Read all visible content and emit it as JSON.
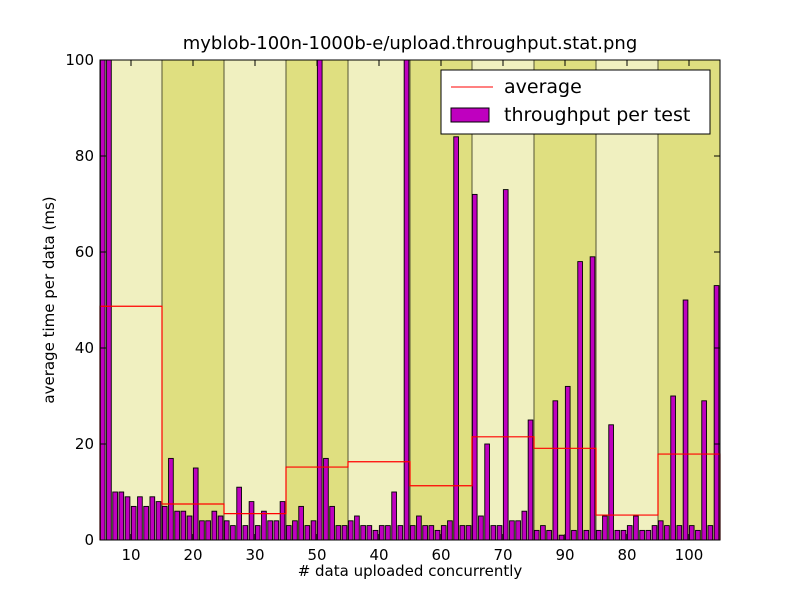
{
  "chart_data": {
    "type": "bar",
    "title": "myblob-100n-1000b-e/upload.throughput.stat.png",
    "xlabel": "# data uploaded concurrently",
    "ylabel": "average time per data (ms)",
    "ylim": [
      0,
      100
    ],
    "yticks": [
      "0",
      "20",
      "40",
      "60",
      "80",
      "100"
    ],
    "bands": [
      {
        "label": "10",
        "color": "#f0f0c0"
      },
      {
        "label": "20",
        "color": "#dfdf80"
      },
      {
        "label": "30",
        "color": "#f0f0c0"
      },
      {
        "label": "50",
        "color": "#dfdf80"
      },
      {
        "label": "40",
        "color": "#f0f0c0"
      },
      {
        "label": "60",
        "color": "#dfdf80"
      },
      {
        "label": "70",
        "color": "#f0f0c0"
      },
      {
        "label": "90",
        "color": "#dfdf80"
      },
      {
        "label": "80",
        "color": "#f0f0c0"
      },
      {
        "label": "100",
        "color": "#dfdf80"
      }
    ],
    "series": [
      {
        "name": "throughput per test",
        "color": "#bf00bf",
        "values": [
          100,
          100,
          10,
          10,
          9,
          7,
          9,
          7,
          9,
          8,
          7,
          17,
          6,
          6,
          5,
          15,
          4,
          4,
          6,
          5,
          4,
          3,
          11,
          3,
          8,
          3,
          6,
          4,
          4,
          8,
          3,
          4,
          7,
          3,
          4,
          100,
          17,
          7,
          3,
          3,
          4,
          5,
          3,
          3,
          2,
          3,
          3,
          10,
          3,
          100,
          3,
          5,
          3,
          3,
          2,
          3,
          4,
          84,
          3,
          3,
          72,
          5,
          20,
          3,
          3,
          73,
          4,
          4,
          6,
          25,
          2,
          3,
          2,
          29,
          1,
          32,
          2,
          58,
          2,
          59,
          2,
          5,
          24,
          2,
          2,
          3,
          5,
          2,
          2,
          3,
          4,
          3,
          30,
          3,
          50,
          3,
          2,
          29,
          3,
          53
        ]
      },
      {
        "name": "average",
        "color": "#ff0000",
        "values": [
          48.7,
          7.5,
          5.5,
          15.2,
          16.3,
          11.3,
          21.5,
          19.1,
          5.2,
          17.9
        ]
      }
    ],
    "legend": {
      "position": "top-right",
      "entries": [
        "average",
        "throughput per test"
      ]
    }
  }
}
